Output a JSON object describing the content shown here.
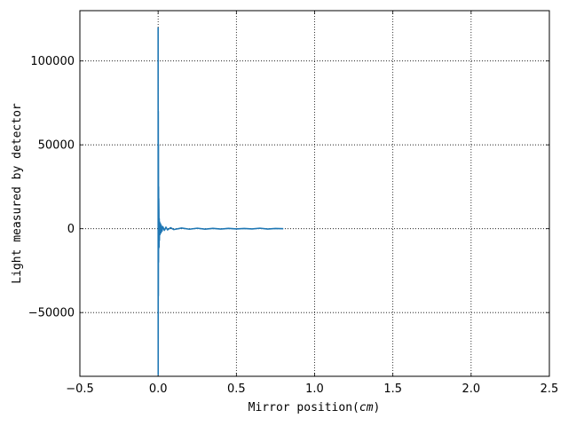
{
  "chart_data": {
    "type": "line",
    "title": "",
    "xlabel": "Mirror position",
    "xlabel_unit": "cm",
    "ylabel": "Light measured by detector",
    "xlim": [
      -0.5,
      2.5
    ],
    "ylim": [
      -88000,
      130000
    ],
    "xticks": [
      -0.5,
      0.0,
      0.5,
      1.0,
      1.5,
      2.0,
      2.5
    ],
    "xtick_labels": [
      "−0.5",
      "0.0",
      "0.5",
      "1.0",
      "1.5",
      "2.0",
      "2.5"
    ],
    "yticks": [
      -50000,
      0,
      50000,
      100000
    ],
    "ytick_labels": [
      "−50000",
      "0",
      "50000",
      "100000"
    ],
    "grid": true,
    "line_color": "#1f77b4",
    "series": [
      {
        "x": [
          0.0,
          0.0005,
          0.001,
          0.0015,
          0.002,
          0.0025,
          0.003,
          0.0035,
          0.004,
          0.005,
          0.006,
          0.007,
          0.008,
          0.01,
          0.012,
          0.015,
          0.018,
          0.02,
          0.025,
          0.03,
          0.04,
          0.05,
          0.06,
          0.08,
          0.1,
          0.15,
          0.2,
          0.25,
          0.3,
          0.35,
          0.4,
          0.45,
          0.5,
          0.55,
          0.6,
          0.65,
          0.7,
          0.75,
          0.8
        ],
        "values": [
          120000,
          -87000,
          70000,
          -40000,
          50000,
          -20000,
          25000,
          -12000,
          18000,
          10000,
          -11000,
          6000,
          -7000,
          4000,
          -3500,
          3000,
          -2500,
          2000,
          -1500,
          1200,
          -1000,
          900,
          -700,
          600,
          -500,
          400,
          -300,
          300,
          -250,
          200,
          -200,
          200,
          -150,
          150,
          -150,
          300,
          -200,
          150,
          0
        ]
      }
    ]
  }
}
